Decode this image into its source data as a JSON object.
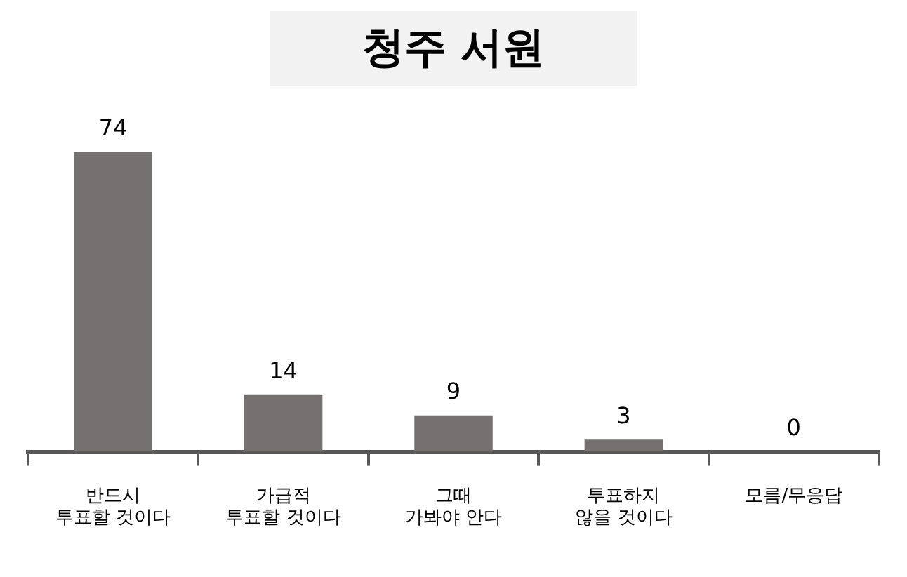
{
  "chart_data": {
    "type": "bar",
    "title": "청주 서원",
    "categories": [
      "반드시\n투표할 것이다",
      "가급적\n투표할 것이다",
      "그때\n가봐야 안다",
      "투표하지\n않을 것이다",
      "모름/무응답"
    ],
    "values": [
      74,
      14,
      9,
      3,
      0
    ],
    "color": "#767171",
    "data_labels": true,
    "grid": false,
    "legend": false,
    "tick_labels": "x"
  }
}
